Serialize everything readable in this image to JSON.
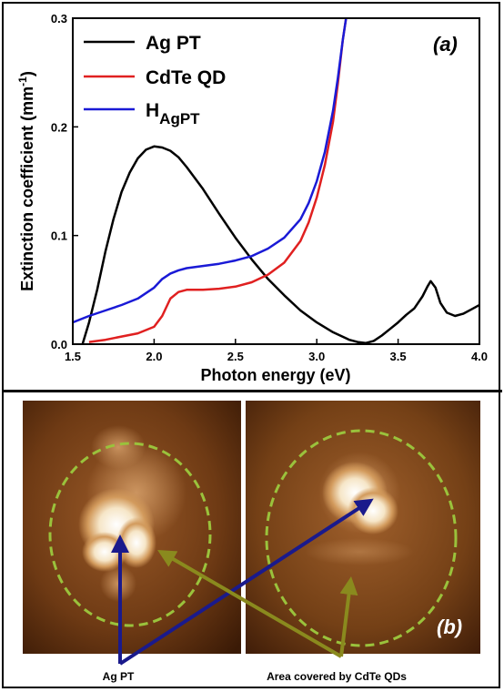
{
  "chart_data": {
    "type": "line",
    "panel_label": "(a)",
    "xlabel": "Photon energy (eV)",
    "ylabel": "Extinction coefficient (mm-1)",
    "xlim": [
      1.5,
      4.0
    ],
    "ylim": [
      0.0,
      0.3
    ],
    "xticks": [
      "1.5",
      "2.0",
      "2.5",
      "3.0",
      "3.5",
      "4.0"
    ],
    "yticks": [
      "0.0",
      "0.1",
      "0.2",
      "0.3"
    ],
    "legend_position": "top-left",
    "series": [
      {
        "name": "Ag PT",
        "color": "#000000",
        "x": [
          1.56,
          1.6,
          1.65,
          1.7,
          1.75,
          1.8,
          1.85,
          1.9,
          1.95,
          2.0,
          2.05,
          2.1,
          2.15,
          2.2,
          2.3,
          2.4,
          2.5,
          2.6,
          2.7,
          2.8,
          2.9,
          3.0,
          3.1,
          3.2,
          3.25,
          3.3,
          3.35,
          3.4,
          3.45,
          3.5,
          3.55,
          3.6,
          3.65,
          3.68,
          3.7,
          3.73,
          3.76,
          3.8,
          3.85,
          3.9,
          3.95,
          4.0
        ],
        "y": [
          0.0,
          0.02,
          0.05,
          0.085,
          0.115,
          0.14,
          0.158,
          0.171,
          0.179,
          0.182,
          0.181,
          0.178,
          0.172,
          0.163,
          0.143,
          0.12,
          0.098,
          0.078,
          0.06,
          0.045,
          0.031,
          0.02,
          0.011,
          0.004,
          0.002,
          0.001,
          0.003,
          0.008,
          0.014,
          0.02,
          0.027,
          0.033,
          0.044,
          0.053,
          0.058,
          0.052,
          0.038,
          0.029,
          0.026,
          0.028,
          0.032,
          0.036
        ]
      },
      {
        "name": "CdTe QD",
        "color": "#e02020",
        "x": [
          1.6,
          1.7,
          1.8,
          1.9,
          2.0,
          2.05,
          2.1,
          2.15,
          2.2,
          2.3,
          2.4,
          2.5,
          2.6,
          2.7,
          2.8,
          2.9,
          2.95,
          3.0,
          3.05,
          3.1,
          3.13,
          3.16,
          3.18,
          3.2
        ],
        "y": [
          0.002,
          0.004,
          0.007,
          0.01,
          0.016,
          0.026,
          0.042,
          0.048,
          0.05,
          0.05,
          0.051,
          0.053,
          0.057,
          0.064,
          0.075,
          0.095,
          0.112,
          0.135,
          0.165,
          0.205,
          0.24,
          0.28,
          0.3,
          0.32
        ]
      },
      {
        "name": "HAgPT",
        "color": "#1a1ad6",
        "x": [
          1.5,
          1.6,
          1.7,
          1.8,
          1.9,
          2.0,
          2.05,
          2.1,
          2.15,
          2.2,
          2.3,
          2.4,
          2.5,
          2.6,
          2.7,
          2.8,
          2.9,
          2.95,
          3.0,
          3.05,
          3.1,
          3.13,
          3.16,
          3.18,
          3.2
        ],
        "y": [
          0.02,
          0.026,
          0.031,
          0.036,
          0.042,
          0.052,
          0.06,
          0.065,
          0.068,
          0.07,
          0.072,
          0.074,
          0.077,
          0.081,
          0.088,
          0.098,
          0.115,
          0.13,
          0.15,
          0.177,
          0.215,
          0.245,
          0.28,
          0.3,
          0.32
        ]
      }
    ]
  },
  "legend": {
    "ag_pt": "Ag PT",
    "cdte_qd": "CdTe QD",
    "h_main": "H",
    "h_sub": "AgPT"
  },
  "ylabel_parts": {
    "main": "Extinction coefficient (mm",
    "sup": "-1",
    "close": ")"
  },
  "panel_b": {
    "label": "(b)",
    "callout_left": "Ag PT",
    "callout_right": "Area covered by CdTe QDs",
    "ellipse_color": "#9ac23c",
    "arrow_blue": "#1a1a8c",
    "arrow_olive": "#8a8a1e"
  }
}
